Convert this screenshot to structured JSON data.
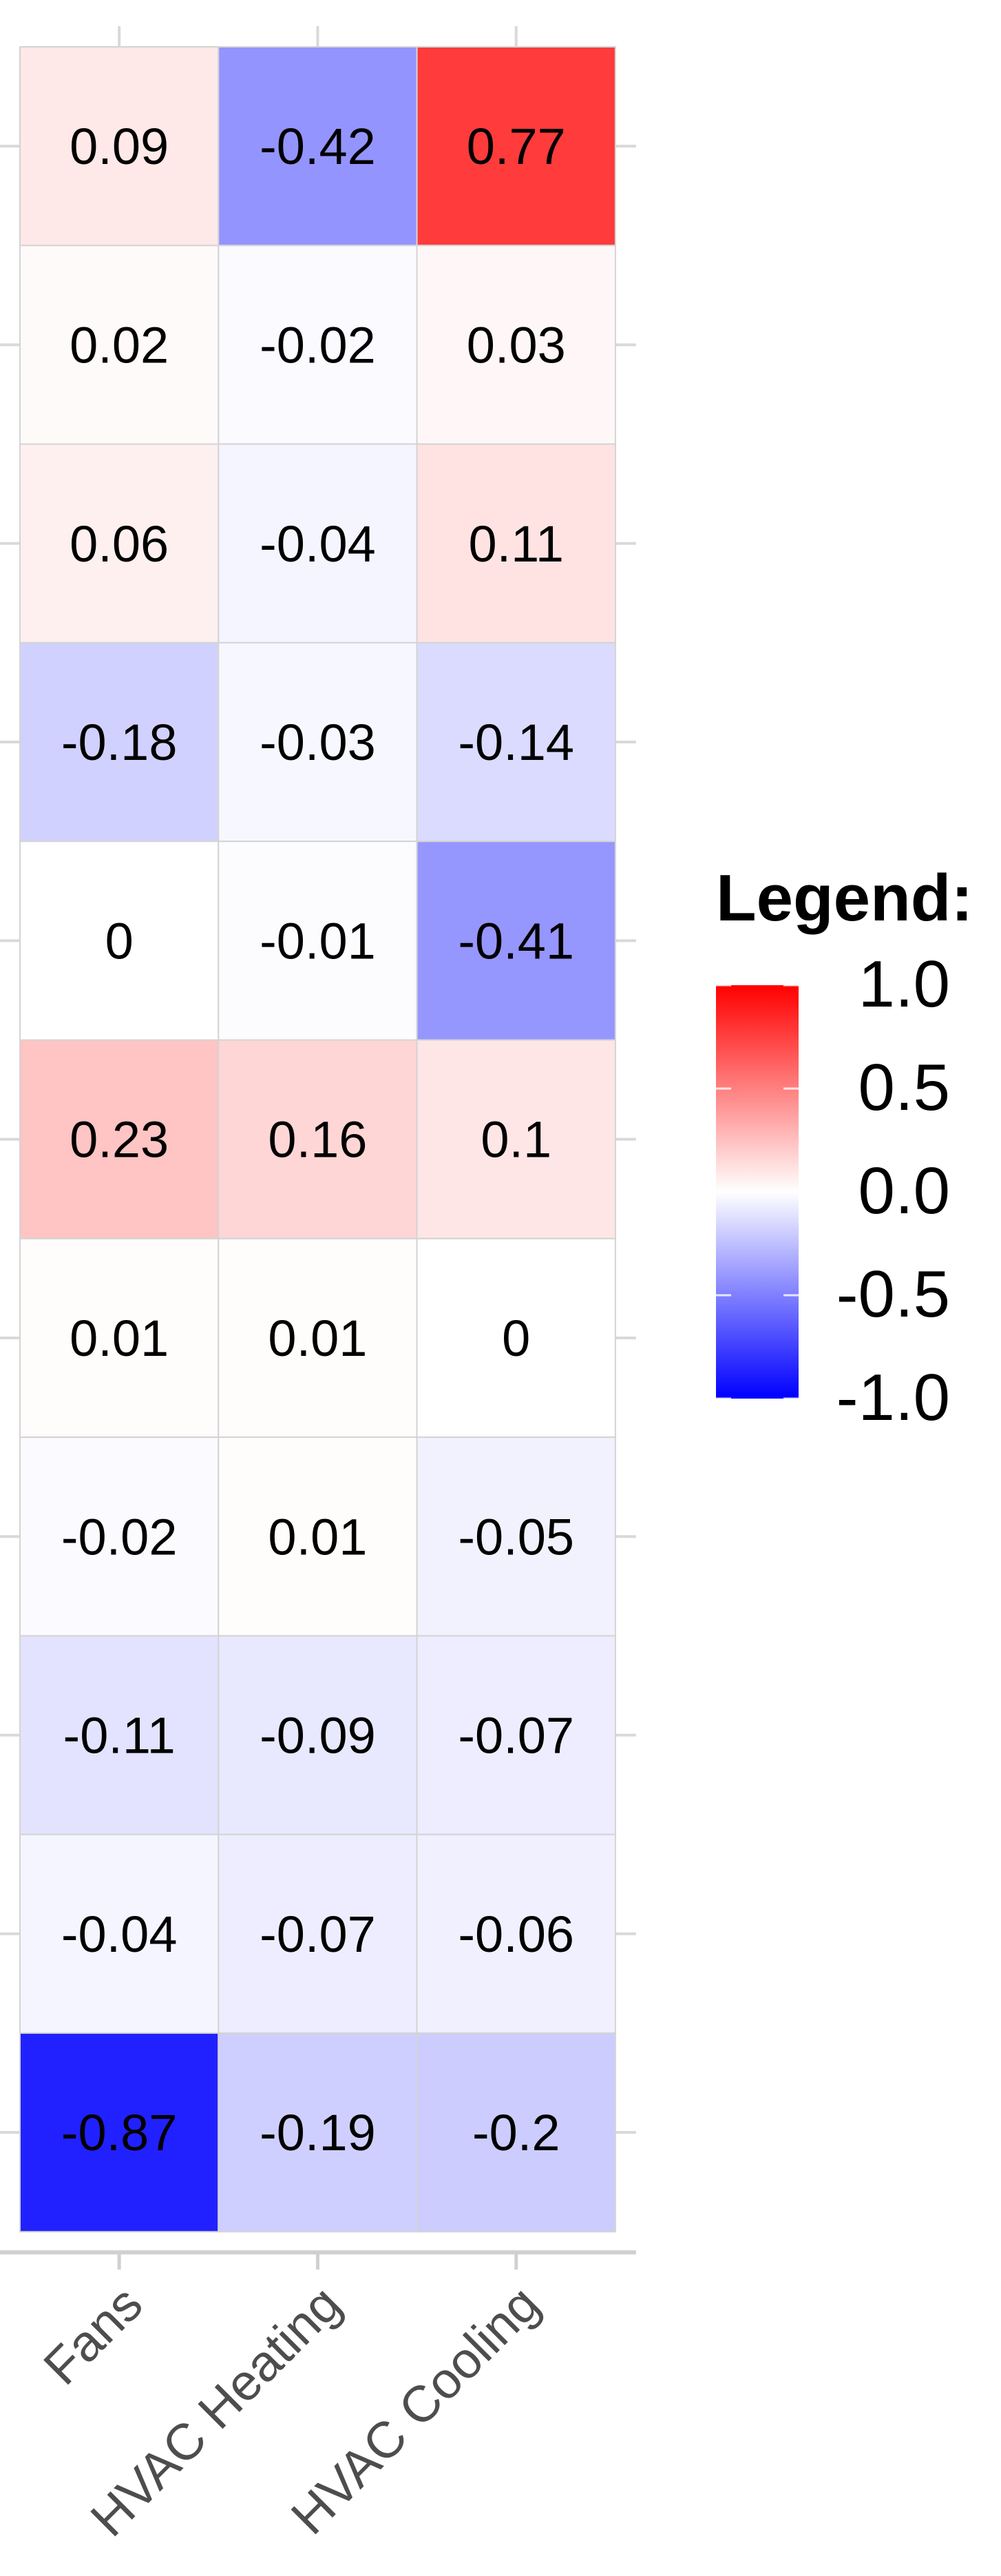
{
  "chart_data": {
    "type": "heatmap",
    "x_categories": [
      "Fans",
      "HVAC Heating",
      "HVAC Cooling"
    ],
    "row_count": 11,
    "values": [
      [
        0.09,
        -0.42,
        0.77
      ],
      [
        0.02,
        -0.02,
        0.03
      ],
      [
        0.06,
        -0.04,
        0.11
      ],
      [
        -0.18,
        -0.03,
        -0.14
      ],
      [
        0,
        -0.01,
        -0.41
      ],
      [
        0.23,
        0.16,
        0.1
      ],
      [
        0.01,
        0.01,
        0
      ],
      [
        -0.02,
        0.01,
        -0.05
      ],
      [
        -0.11,
        -0.09,
        -0.07
      ],
      [
        -0.04,
        -0.07,
        -0.06
      ],
      [
        -0.87,
        -0.19,
        -0.2
      ]
    ],
    "legend": {
      "title": "Legend:",
      "min": -1,
      "max": 1,
      "ticks": [
        1.0,
        0.5,
        0.0,
        -0.5,
        -1.0
      ],
      "tick_labels": [
        "1.0",
        "0.5",
        "0.0",
        "-0.5",
        "-1.0"
      ],
      "low_color": "#0000ff",
      "mid_color": "#ffffff",
      "high_color": "#ff0000"
    },
    "grid": true,
    "legend_position": "right"
  }
}
